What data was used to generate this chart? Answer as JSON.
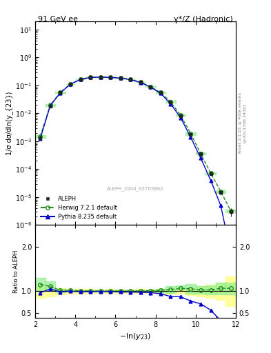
{
  "title_left": "91 GeV ee",
  "title_right": "γ*/Z (Hadronic)",
  "xlabel": "-ln(y_{23})",
  "ylabel_main": "1/σ dσ/dln(y_{23})",
  "ylabel_ratio": "Ratio to ALEPH",
  "right_label_top": "Rivet 3.1.10; ≥ 400k events",
  "right_label_bottom": "[arXiv:1306.3436]",
  "watermark": "ALEPH_2004_S5765862",
  "xlim": [
    2.0,
    12.0
  ],
  "ylim_main": [
    1e-06,
    20.0
  ],
  "ylim_ratio": [
    0.4,
    2.5
  ],
  "ratio_yticks": [
    0.5,
    1.0,
    2.0
  ],
  "aleph_x": [
    2.25,
    2.75,
    3.25,
    3.75,
    4.25,
    4.75,
    5.25,
    5.75,
    6.25,
    6.75,
    7.25,
    7.75,
    8.25,
    8.75,
    9.25,
    9.75,
    10.25,
    10.75,
    11.25,
    11.75
  ],
  "aleph_y": [
    0.0013,
    0.018,
    0.055,
    0.11,
    0.165,
    0.195,
    0.2,
    0.195,
    0.185,
    0.165,
    0.13,
    0.09,
    0.055,
    0.025,
    0.008,
    0.0018,
    0.00035,
    7e-05,
    1.5e-05,
    3e-06
  ],
  "aleph_yerr": [
    0.0002,
    0.002,
    0.004,
    0.006,
    0.008,
    0.009,
    0.009,
    0.009,
    0.008,
    0.007,
    0.006,
    0.004,
    0.003,
    0.0015,
    0.0005,
    0.00015,
    4e-05,
    1e-05,
    3e-06,
    1e-06
  ],
  "herwig_x": [
    2.25,
    2.75,
    3.25,
    3.75,
    4.25,
    4.75,
    5.25,
    5.75,
    6.25,
    6.75,
    7.25,
    7.75,
    8.25,
    8.75,
    9.25,
    9.75,
    10.25,
    10.75,
    11.25,
    11.75
  ],
  "herwig_y": [
    0.0015,
    0.02,
    0.056,
    0.112,
    0.167,
    0.196,
    0.201,
    0.196,
    0.186,
    0.166,
    0.131,
    0.091,
    0.056,
    0.026,
    0.0085,
    0.0019,
    0.00036,
    7.2e-05,
    1.6e-05,
    3.2e-06
  ],
  "pythia_x": [
    2.25,
    2.75,
    3.25,
    3.75,
    4.25,
    4.75,
    5.25,
    5.75,
    6.25,
    6.75,
    7.25,
    7.75,
    8.25,
    8.75,
    9.25,
    9.75,
    10.25,
    10.75,
    11.25,
    11.75
  ],
  "pythia_y": [
    0.00125,
    0.019,
    0.054,
    0.11,
    0.163,
    0.193,
    0.199,
    0.193,
    0.182,
    0.162,
    0.127,
    0.087,
    0.052,
    0.022,
    0.007,
    0.0014,
    0.00025,
    4e-05,
    5e-06,
    1e-07
  ],
  "herwig_band_lo": [
    0.0013,
    0.018,
    0.054,
    0.11,
    0.165,
    0.194,
    0.199,
    0.194,
    0.184,
    0.164,
    0.129,
    0.089,
    0.054,
    0.024,
    0.0083,
    0.0017,
    0.00033,
    6.5e-05,
    1.4e-05,
    2.8e-06
  ],
  "herwig_band_hi": [
    0.0017,
    0.022,
    0.058,
    0.114,
    0.169,
    0.198,
    0.203,
    0.198,
    0.188,
    0.168,
    0.133,
    0.093,
    0.058,
    0.028,
    0.009,
    0.0021,
    0.00039,
    7.9e-05,
    1.8e-05,
    3.6e-06
  ],
  "aleph_color": "#222222",
  "herwig_color": "#228B22",
  "pythia_color": "#0000CC",
  "herwig_band_color": "#90EE90",
  "yellow_band_color": "#FFFF99",
  "bg_color": "#ffffff"
}
